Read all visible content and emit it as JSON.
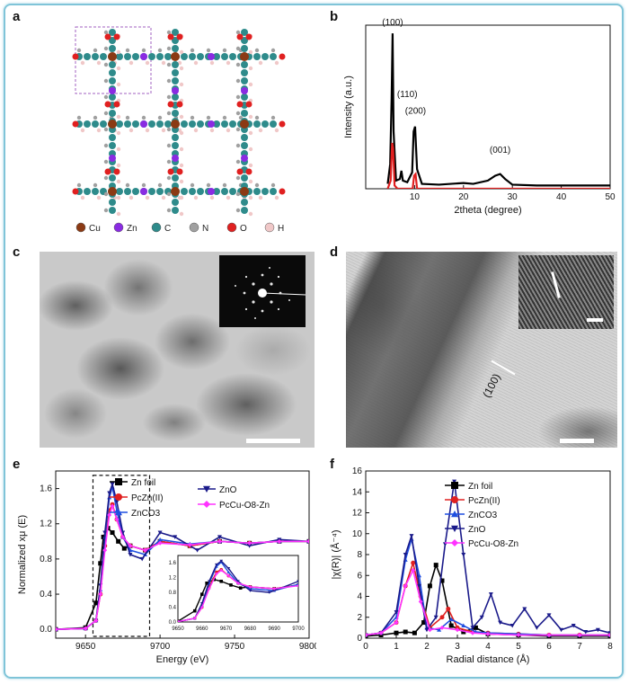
{
  "panel_labels": {
    "a": "a",
    "b": "b",
    "c": "c",
    "d": "d",
    "e": "e",
    "f": "f"
  },
  "legend_a": [
    {
      "label": "Cu",
      "color": "#8b3a14"
    },
    {
      "label": "Zn",
      "color": "#8a2be2"
    },
    {
      "label": "C",
      "color": "#2e8b8b"
    },
    {
      "label": "N",
      "color": "#a0a0a0"
    },
    {
      "label": "O",
      "color": "#e02020"
    },
    {
      "label": "H",
      "color": "#f0c8c8"
    }
  ],
  "panel_d": {
    "fringe_label": "(100)"
  },
  "chart_data": [
    {
      "id": "xrd",
      "type": "line",
      "xlabel": "2theta (degree)",
      "ylabel": "Intensity (a.u.)",
      "xlim": [
        0,
        50
      ],
      "xticks": [
        10,
        20,
        30,
        40,
        50
      ],
      "annotations": [
        {
          "text": "(100)",
          "x": 5.5
        },
        {
          "text": "(110)",
          "x": 8.5
        },
        {
          "text": "(200)",
          "x": 10.2
        },
        {
          "text": "(001)",
          "x": 27.5
        }
      ],
      "series": [
        {
          "name": "experimental",
          "color": "#000000",
          "x": [
            4.5,
            5.0,
            5.3,
            5.5,
            5.7,
            6.2,
            7.0,
            7.3,
            7.6,
            8.5,
            9.5,
            9.8,
            10.1,
            10.5,
            11.5,
            15,
            20,
            22,
            25,
            26.5,
            27.5,
            28.5,
            30,
            35,
            40,
            45,
            50
          ],
          "y": [
            0.03,
            0.15,
            0.55,
            0.95,
            0.35,
            0.05,
            0.06,
            0.11,
            0.05,
            0.04,
            0.1,
            0.35,
            0.38,
            0.12,
            0.03,
            0.025,
            0.035,
            0.03,
            0.05,
            0.08,
            0.09,
            0.06,
            0.025,
            0.02,
            0.02,
            0.02,
            0.02
          ]
        },
        {
          "name": "simulated",
          "color": "#e02020",
          "x": [
            4.5,
            5.1,
            5.4,
            5.6,
            5.9,
            6.5,
            9.6,
            9.9,
            10.2,
            10.5,
            11,
            20,
            50
          ],
          "y": [
            0.0,
            0.05,
            0.28,
            0.25,
            0.02,
            0.0,
            0.0,
            0.08,
            0.09,
            0.0,
            0.0,
            0.0,
            0.0
          ]
        }
      ]
    },
    {
      "id": "xanes",
      "type": "line",
      "xlabel": "Energy (eV)",
      "ylabel": "Normalized xμ (E)",
      "xlim": [
        9630,
        9800
      ],
      "ylim": [
        -0.1,
        1.8
      ],
      "xticks": [
        9650,
        9700,
        9750,
        9800
      ],
      "yticks": [
        0.0,
        0.4,
        0.8,
        1.2,
        1.6
      ],
      "inset": {
        "xlim": [
          9650,
          9700
        ],
        "ylim": [
          0,
          1.8
        ],
        "xticks": [
          9650,
          9660,
          9670,
          9680,
          9690,
          9700
        ],
        "yticks": [
          0,
          0.4,
          0.8,
          1.2,
          1.6
        ]
      },
      "series": [
        {
          "name": "Zn foil",
          "color": "#000000",
          "marker": "square",
          "x": [
            9630,
            9650,
            9657,
            9660,
            9662,
            9665,
            9668,
            9672,
            9676,
            9680,
            9690,
            9700,
            9720,
            9740,
            9760,
            9780,
            9800
          ],
          "y": [
            0,
            0.02,
            0.3,
            0.75,
            1.05,
            1.15,
            1.1,
            1.0,
            0.92,
            0.95,
            0.9,
            1.0,
            0.95,
            1.0,
            0.98,
            1.0,
            1.0
          ]
        },
        {
          "name": "PcZn(II)",
          "color": "#e02020",
          "marker": "circle",
          "x": [
            9630,
            9650,
            9657,
            9660,
            9663,
            9666,
            9668,
            9671,
            9675,
            9680,
            9690,
            9700,
            9720,
            9740,
            9760,
            9780,
            9800
          ],
          "y": [
            0,
            0.01,
            0.1,
            0.4,
            0.95,
            1.35,
            1.42,
            1.25,
            1.05,
            0.95,
            0.9,
            1.0,
            0.95,
            1.0,
            0.98,
            1.0,
            1.0
          ]
        },
        {
          "name": "ZnCO3",
          "color": "#1f4fe0",
          "marker": "triangle",
          "x": [
            9630,
            9650,
            9657,
            9660,
            9663,
            9666,
            9668,
            9671,
            9675,
            9680,
            9690,
            9700,
            9720,
            9740,
            9760,
            9780,
            9800
          ],
          "y": [
            0,
            0.01,
            0.1,
            0.45,
            1.05,
            1.5,
            1.62,
            1.35,
            1.05,
            0.9,
            0.85,
            1.02,
            0.97,
            1.0,
            0.98,
            1.0,
            1.0
          ]
        },
        {
          "name": "ZnO",
          "color": "#1a1a8a",
          "marker": "triangle-down",
          "x": [
            9630,
            9650,
            9657,
            9660,
            9663,
            9666,
            9668,
            9671,
            9675,
            9680,
            9688,
            9700,
            9710,
            9725,
            9740,
            9760,
            9780,
            9800
          ],
          "y": [
            0,
            0.01,
            0.1,
            0.5,
            1.1,
            1.55,
            1.65,
            1.45,
            1.1,
            0.85,
            0.8,
            1.1,
            1.05,
            0.9,
            1.05,
            0.95,
            1.02,
            1.0
          ]
        },
        {
          "name": "PcCu-O8-Zn",
          "color": "#ff33ff",
          "marker": "diamond",
          "x": [
            9630,
            9650,
            9657,
            9660,
            9663,
            9666,
            9668,
            9671,
            9675,
            9680,
            9690,
            9700,
            9720,
            9740,
            9760,
            9780,
            9800
          ],
          "y": [
            0,
            0.01,
            0.1,
            0.4,
            0.9,
            1.3,
            1.4,
            1.25,
            1.05,
            0.95,
            0.9,
            0.98,
            0.96,
            1.0,
            0.98,
            1.0,
            1.0
          ]
        }
      ]
    },
    {
      "id": "exafs",
      "type": "line",
      "xlabel": "Radial distance (Å)",
      "ylabel": "|χ(R)| (Å⁻⁴)",
      "xlim": [
        0,
        8
      ],
      "ylim": [
        0,
        16
      ],
      "xticks": [
        0,
        1,
        2,
        3,
        4,
        5,
        6,
        7,
        8
      ],
      "yticks": [
        0,
        2,
        4,
        6,
        8,
        10,
        12,
        14,
        16
      ],
      "series": [
        {
          "name": "Zn foil",
          "color": "#000000",
          "marker": "square",
          "x": [
            0,
            0.5,
            1.0,
            1.3,
            1.6,
            1.9,
            2.1,
            2.3,
            2.5,
            2.8,
            3.2,
            3.6,
            4.0,
            5.0,
            6.0,
            7.0,
            8.0
          ],
          "y": [
            0.2,
            0.3,
            0.5,
            0.6,
            0.5,
            1.5,
            5.0,
            7.0,
            5.5,
            1.2,
            0.6,
            1.0,
            0.4,
            0.3,
            0.2,
            0.2,
            0.2
          ]
        },
        {
          "name": "PcZn(II)",
          "color": "#e02020",
          "marker": "circle",
          "x": [
            0,
            0.5,
            1.0,
            1.3,
            1.55,
            1.8,
            2.1,
            2.5,
            2.7,
            3.0,
            3.5,
            4.0,
            5.0,
            6.0,
            7.0,
            8.0
          ],
          "y": [
            0.3,
            0.5,
            1.5,
            5.0,
            7.2,
            4.0,
            1.0,
            2.0,
            2.8,
            1.0,
            0.6,
            0.5,
            0.4,
            0.3,
            0.3,
            0.3
          ]
        },
        {
          "name": "ZnCO3",
          "color": "#1f4fe0",
          "marker": "triangle",
          "x": [
            0,
            0.5,
            1.0,
            1.3,
            1.5,
            1.75,
            2.0,
            2.4,
            2.8,
            3.2,
            3.6,
            4.0,
            5.0,
            6.0,
            7.0,
            8.0
          ],
          "y": [
            0.3,
            0.5,
            2.0,
            7.5,
            9.5,
            6.0,
            1.0,
            0.8,
            1.8,
            1.2,
            0.6,
            0.5,
            0.4,
            0.3,
            0.3,
            0.3
          ]
        },
        {
          "name": "ZnO",
          "color": "#1a1a8a",
          "marker": "triangle-down",
          "x": [
            0,
            0.5,
            1.0,
            1.3,
            1.5,
            1.75,
            2.0,
            2.3,
            2.6,
            2.9,
            3.2,
            3.5,
            3.8,
            4.1,
            4.4,
            4.8,
            5.2,
            5.6,
            6.0,
            6.4,
            6.8,
            7.2,
            7.6,
            8.0
          ],
          "y": [
            0.3,
            0.5,
            2.5,
            8.0,
            9.8,
            5.0,
            0.8,
            2.0,
            9.0,
            15.0,
            8.0,
            1.0,
            2.0,
            4.2,
            1.5,
            1.2,
            2.8,
            1.0,
            2.2,
            0.8,
            1.2,
            0.6,
            0.8,
            0.5
          ]
        },
        {
          "name": "PcCu-O8-Zn",
          "color": "#ff33ff",
          "marker": "diamond",
          "x": [
            0,
            0.5,
            1.0,
            1.3,
            1.55,
            1.8,
            2.1,
            2.5,
            3.0,
            3.5,
            4.0,
            5.0,
            6.0,
            7.0,
            8.0
          ],
          "y": [
            0.3,
            0.5,
            1.5,
            5.0,
            6.5,
            3.5,
            0.8,
            1.0,
            0.8,
            0.5,
            0.4,
            0.3,
            0.3,
            0.3,
            0.3
          ]
        }
      ]
    }
  ]
}
